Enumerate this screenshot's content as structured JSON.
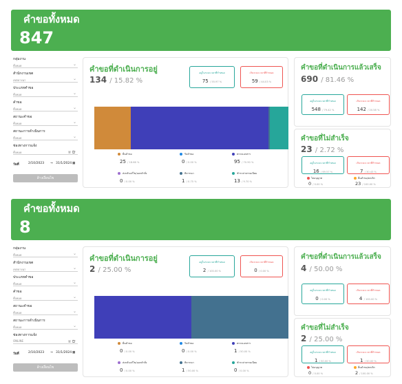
{
  "filter_labels": {
    "group": "กลุ่มงาน",
    "office": "สำนักงานเขต",
    "type": "ประเภทคำขอ",
    "request": "คำขอ",
    "status": "สถานะคำขอ",
    "process": "สถานะการดำเนินการ",
    "channel": "ช่องทางการแจ้ง",
    "date_label": "วันที่",
    "clear": "ล้างเงื่อนไข"
  },
  "legend_labels": {
    "ongoing": [
      "ยื่นคำขอ",
      "รับคำขอ",
      "ตรวจเอกสาร",
      "ส่งกลับแก้ไข/ออกคำสั่ง",
      "พิจารณา",
      "ชำระค่าธรรมเนียม"
    ],
    "not_done": [
      "ไม่อนุญาต",
      "ยื่นคำขอ/ยกเลิก"
    ]
  },
  "titles": {
    "all": "คำขอทั้งหมด",
    "ongoing": "คำขอที่ดำเนินการอยู่",
    "done": "คำขอที่ดำเนินการแล้วเสร็จ",
    "not_done": "คำขอที่ไม่สำเร็จ",
    "within": "อยู่ในระยะเวลาที่กำหนด",
    "over": "เกินระยะเวลาที่กำหนด"
  },
  "colors": {
    "green": "#4caf50",
    "legend": [
      "#d08a3a",
      "#1e88e5",
      "#3f3fb8",
      "#9e6fcf",
      "#43718f",
      "#26a69a"
    ]
  },
  "dashboards": [
    {
      "total": "847",
      "filters": {
        "group": "ทั้งหมด",
        "office": "เขตบางนา",
        "type": "ทั้งหมด",
        "request": "ทั้งหมด",
        "status": "ทั้งหมด",
        "process": "ทั้งหมด",
        "channel": "ทั้งหมด",
        "date_from": "2/10/2023",
        "date_to": "31/1/2024"
      },
      "ongoing": {
        "count": "134",
        "pct": "/ 15.82 %",
        "within": "75",
        "within_pct": "/ 55.97 %",
        "over": "59",
        "over_pct": "/ 44.03 %",
        "bar_segments": [
          25,
          0,
          95,
          0,
          1,
          13
        ],
        "legend_values": [
          {
            "v": "25",
            "p": "/ 18.66 %"
          },
          {
            "v": "0",
            "p": "/ 0.00 %"
          },
          {
            "v": "95",
            "p": "/ 70.90 %"
          },
          {
            "v": "0",
            "p": "/ 0.00 %"
          },
          {
            "v": "1",
            "p": "/ 0.75 %"
          },
          {
            "v": "13",
            "p": "/ 9.70 %"
          }
        ]
      },
      "done": {
        "count": "690",
        "pct": "/ 81.46 %",
        "within": "548",
        "within_pct": "/ 79.42 %",
        "over": "142",
        "over_pct": "/ 20.58 %"
      },
      "not_done": {
        "count": "23",
        "pct": "/ 2.72 %",
        "within": "16",
        "within_pct": "/ 69.57 %",
        "over": "7",
        "over_pct": "/ 30.43 %",
        "legend_values": [
          {
            "v": "0",
            "p": "/ 0.00 %"
          },
          {
            "v": "23",
            "p": "/ 100.00 %"
          }
        ]
      }
    },
    {
      "total": "8",
      "filters": {
        "group": "ทั้งหมด",
        "office": "เขตบางนา",
        "type": "ทั้งหมด",
        "request": "ทั้งหมด",
        "status": "ทั้งหมด",
        "process": "ทั้งหมด",
        "channel": "ONLINE",
        "date_from": "2/10/2023",
        "date_to": "31/1/2024"
      },
      "ongoing": {
        "count": "2",
        "pct": "/ 25.00 %",
        "within": "2",
        "within_pct": "/ 100.00 %",
        "over": "0",
        "over_pct": "/ 0.00 %",
        "bar_segments": [
          0,
          0,
          1,
          0,
          1,
          0
        ],
        "legend_values": [
          {
            "v": "0",
            "p": "/ 0.00 %"
          },
          {
            "v": "0",
            "p": "/ 0.00 %"
          },
          {
            "v": "1",
            "p": "/ 50.00 %"
          },
          {
            "v": "0",
            "p": "/ 0.00 %"
          },
          {
            "v": "1",
            "p": "/ 50.00 %"
          },
          {
            "v": "0",
            "p": "/ 0.00 %"
          }
        ]
      },
      "done": {
        "count": "4",
        "pct": "/ 50.00 %",
        "within": "0",
        "within_pct": "/ 0.00 %",
        "over": "4",
        "over_pct": "/ 100.00 %"
      },
      "not_done": {
        "count": "2",
        "pct": "/ 25.00 %",
        "within": "1",
        "within_pct": "/ 50.00 %",
        "over": "1",
        "over_pct": "/ 50.00 %",
        "legend_values": [
          {
            "v": "0",
            "p": "/ 0.00 %"
          },
          {
            "v": "2",
            "p": "/ 100.00 %"
          }
        ]
      }
    }
  ]
}
